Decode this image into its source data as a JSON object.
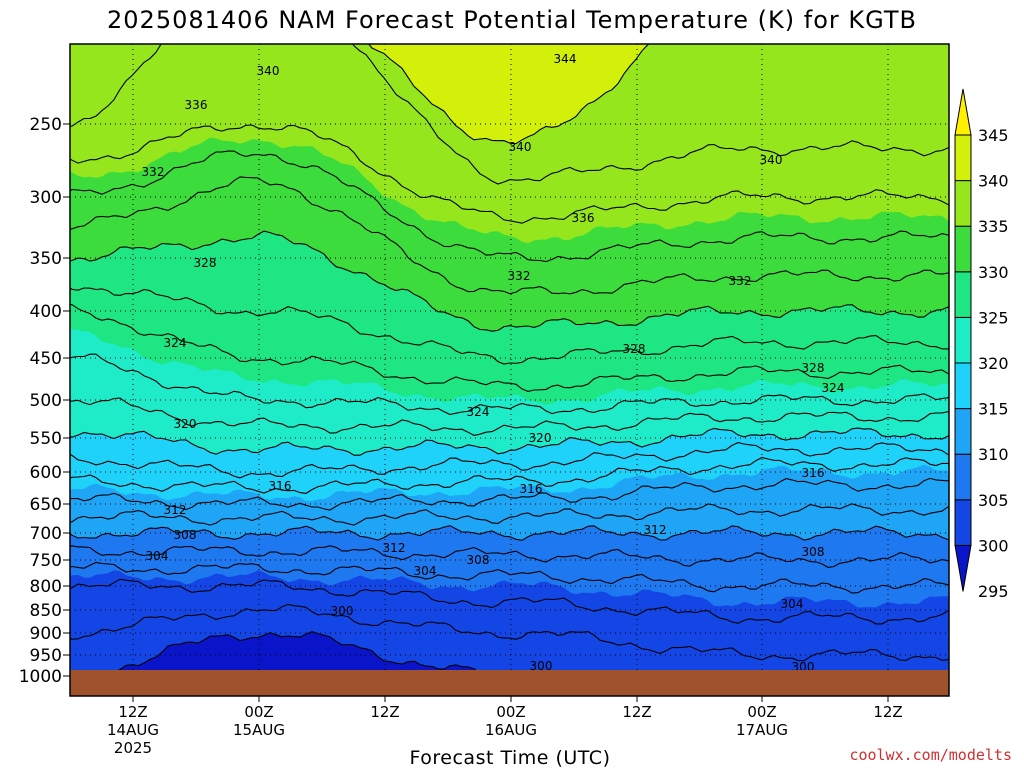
{
  "title": "2025081406 NAM Forecast Potential Temperature (K) for KGTB",
  "credit": "coolwx.com/modelts",
  "chart_data": {
    "type": "heatmap",
    "title": "2025081406 NAM Forecast Potential Temperature (K) for KGTB",
    "xlabel": "Forecast Time (UTC)",
    "ylabel": "",
    "y_ticks": [
      "250",
      "300",
      "350",
      "400",
      "450",
      "500",
      "550",
      "600",
      "650",
      "700",
      "750",
      "800",
      "850",
      "900",
      "950",
      "1000"
    ],
    "x_ticks": [
      {
        "hour": "12Z",
        "date": "14AUG",
        "year": "2025"
      },
      {
        "hour": "00Z",
        "date": "15AUG",
        "year": ""
      },
      {
        "hour": "12Z",
        "date": "",
        "year": ""
      },
      {
        "hour": "00Z",
        "date": "16AUG",
        "year": ""
      },
      {
        "hour": "12Z",
        "date": "",
        "year": ""
      },
      {
        "hour": "00Z",
        "date": "17AUG",
        "year": ""
      },
      {
        "hour": "12Z",
        "date": "",
        "year": ""
      }
    ],
    "colorbar": {
      "levels": [
        "295",
        "300",
        "305",
        "310",
        "315",
        "320",
        "325",
        "330",
        "335",
        "340",
        "345"
      ],
      "colors": [
        "#0a14c8",
        "#1446e6",
        "#1e78f0",
        "#1ea5f5",
        "#1ed2fa",
        "#1eebc8",
        "#1ee682",
        "#3cdc3c",
        "#96e61e",
        "#d2f00a",
        "#fff000"
      ]
    },
    "contour_labels": [
      "344",
      "340",
      "336",
      "332",
      "328",
      "340",
      "336",
      "340",
      "332",
      "332",
      "324",
      "328",
      "328",
      "324",
      "324",
      "320",
      "320",
      "316",
      "316",
      "316",
      "312",
      "312",
      "312",
      "308",
      "308",
      "308",
      "304",
      "304",
      "304",
      "300",
      "300",
      "300"
    ],
    "profiles": [
      {
        "time": "06Z 14AUG",
        "theta": [
          {
            "p": 250,
            "t": 338
          },
          {
            "p": 300,
            "t": 334
          },
          {
            "p": 400,
            "t": 326
          },
          {
            "p": 500,
            "t": 322
          },
          {
            "p": 600,
            "t": 317
          },
          {
            "p": 700,
            "t": 310
          },
          {
            "p": 800,
            "t": 304
          },
          {
            "p": 900,
            "t": 302
          },
          {
            "p": 1000,
            "t": 300
          }
        ]
      },
      {
        "time": "00Z 15AUG",
        "theta": [
          {
            "p": 250,
            "t": 336
          },
          {
            "p": 300,
            "t": 331
          },
          {
            "p": 400,
            "t": 328
          },
          {
            "p": 500,
            "t": 324
          },
          {
            "p": 600,
            "t": 318
          },
          {
            "p": 700,
            "t": 310
          },
          {
            "p": 800,
            "t": 304
          },
          {
            "p": 900,
            "t": 300
          },
          {
            "p": 1000,
            "t": 298
          }
        ]
      },
      {
        "time": "00Z 16AUG",
        "theta": [
          {
            "p": 250,
            "t": 341
          },
          {
            "p": 300,
            "t": 337
          },
          {
            "p": 400,
            "t": 331
          },
          {
            "p": 500,
            "t": 325
          },
          {
            "p": 600,
            "t": 317
          },
          {
            "p": 700,
            "t": 310
          },
          {
            "p": 800,
            "t": 305
          },
          {
            "p": 900,
            "t": 302
          },
          {
            "p": 1000,
            "t": 300
          }
        ]
      },
      {
        "time": "00Z 17AUG",
        "theta": [
          {
            "p": 250,
            "t": 339
          },
          {
            "p": 300,
            "t": 336
          },
          {
            "p": 400,
            "t": 330
          },
          {
            "p": 500,
            "t": 324
          },
          {
            "p": 600,
            "t": 315
          },
          {
            "p": 700,
            "t": 310
          },
          {
            "p": 800,
            "t": 306
          },
          {
            "p": 900,
            "t": 303
          },
          {
            "p": 1000,
            "t": 301
          }
        ]
      }
    ],
    "grid": true,
    "legend": "right-colorbar"
  }
}
